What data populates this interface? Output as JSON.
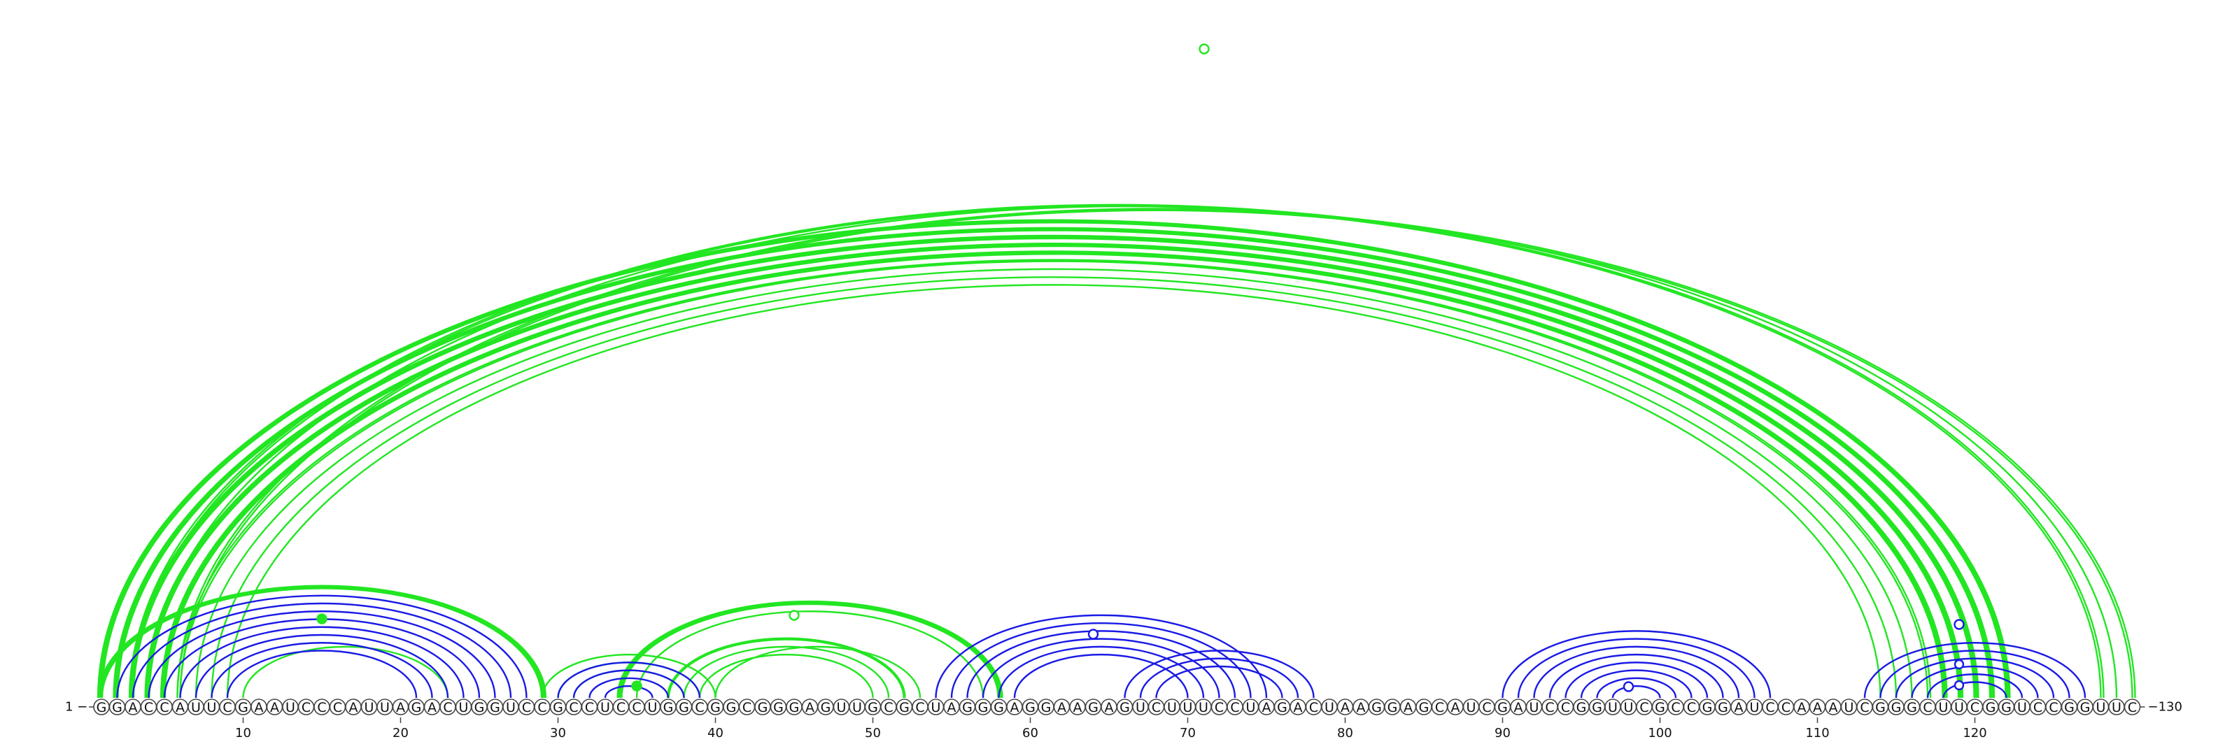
{
  "chart_data": {
    "type": "arc-diagram",
    "sequence": "GGACCAUUCGAAUCCCAUUAGACUGGUCCGCCUCCUGGCGGCGGGAGUUGCGCUAGGGAGGAAGAGUCUUUCCUAGACUAAGGAGCAUCGAUCCGGUUCGCCGGAUCCAAAUCGGGCUUCGGUCCGGUUC",
    "start_label": "1",
    "end_label": "130",
    "ticks": [
      10,
      20,
      30,
      40,
      50,
      60,
      70,
      80,
      90,
      100,
      110,
      120
    ],
    "colors": {
      "blue": "#1a1ae6",
      "green": "#22e622"
    },
    "pairs_blue": [
      [
        2,
        28
      ],
      [
        3,
        27
      ],
      [
        4,
        26
      ],
      [
        5,
        25
      ],
      [
        6,
        24
      ],
      [
        7,
        23
      ],
      [
        8,
        22
      ],
      [
        9,
        21
      ],
      [
        30,
        39
      ],
      [
        31,
        38
      ],
      [
        32,
        37
      ],
      [
        33,
        36
      ],
      [
        54,
        75
      ],
      [
        55,
        74
      ],
      [
        56,
        73
      ],
      [
        57,
        72
      ],
      [
        58,
        71
      ],
      [
        59,
        70
      ],
      [
        66,
        78
      ],
      [
        67,
        77
      ],
      [
        68,
        76
      ],
      [
        90,
        107
      ],
      [
        91,
        106
      ],
      [
        92,
        105
      ],
      [
        93,
        104
      ],
      [
        94,
        103
      ],
      [
        95,
        102
      ],
      [
        96,
        101
      ],
      [
        97,
        100
      ],
      [
        113,
        127
      ],
      [
        114,
        126
      ],
      [
        115,
        125
      ],
      [
        116,
        124
      ],
      [
        117,
        123
      ],
      [
        118,
        122
      ]
    ],
    "pairs_green": [
      [
        1,
        122
      ],
      [
        2,
        121
      ],
      [
        3,
        120
      ],
      [
        4,
        119
      ],
      [
        5,
        118
      ],
      [
        6,
        117
      ],
      [
        7,
        116
      ],
      [
        8,
        115
      ],
      [
        9,
        114
      ],
      [
        1,
        29
      ],
      [
        10,
        23
      ],
      [
        29,
        40
      ],
      [
        30,
        39
      ],
      [
        31,
        38
      ],
      [
        34,
        58
      ],
      [
        35,
        57
      ],
      [
        37,
        52
      ],
      [
        38,
        51
      ],
      [
        39,
        50
      ],
      [
        40,
        53
      ],
      [
        3,
        128
      ],
      [
        4,
        129
      ],
      [
        6,
        130
      ]
    ],
    "bold_green": [
      [
        1,
        122
      ],
      [
        2,
        121
      ],
      [
        3,
        120
      ],
      [
        4,
        119
      ],
      [
        5,
        118
      ],
      [
        1,
        29
      ],
      [
        34,
        58
      ],
      [
        37,
        52
      ]
    ],
    "double_green": [
      [
        1,
        122
      ],
      [
        2,
        121
      ],
      [
        3,
        120
      ],
      [
        4,
        119
      ],
      [
        5,
        118
      ],
      [
        6,
        117
      ],
      [
        1,
        29
      ],
      [
        34,
        58
      ],
      [
        3,
        128
      ],
      [
        6,
        130
      ]
    ],
    "markers": [
      {
        "pos": 15,
        "color": "green",
        "filled": true
      },
      {
        "pos": 65,
        "color": "green",
        "filled": false,
        "arc": [
          3,
          128
        ]
      },
      {
        "pos": 35,
        "color": "green",
        "filled": true
      },
      {
        "pos": 45,
        "color": "green",
        "filled": false
      },
      {
        "pos": 64,
        "color": "blue",
        "filled": false
      },
      {
        "pos": 98,
        "color": "blue",
        "filled": false
      },
      {
        "pos": 119,
        "color": "blue",
        "filled": false
      }
    ]
  }
}
